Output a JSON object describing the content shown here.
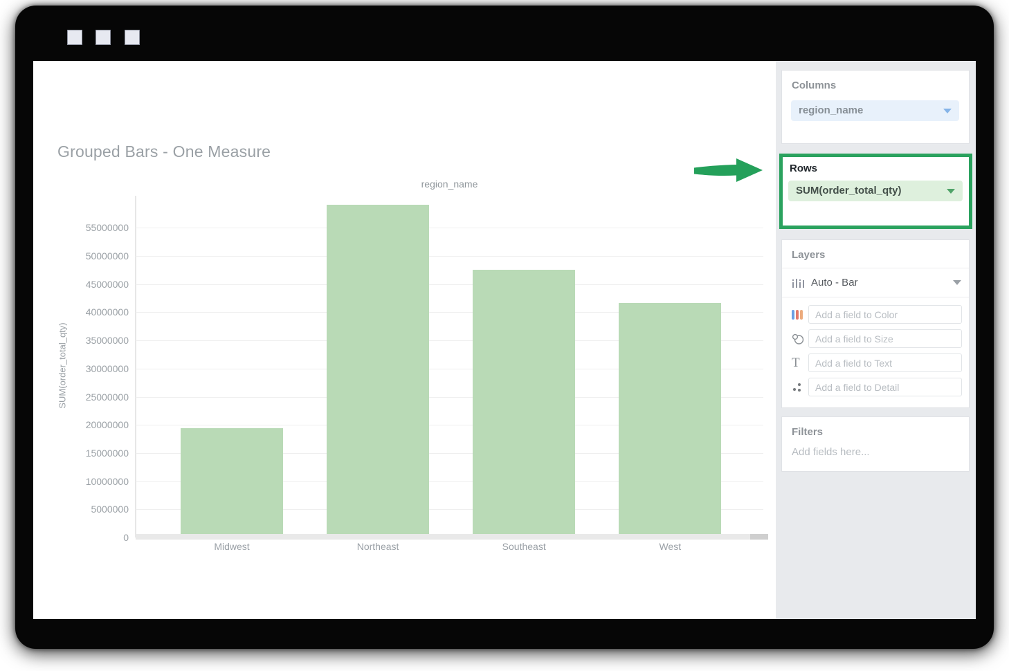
{
  "titlebar": {
    "window_buttons": [
      "square-button",
      "square-button",
      "square-button"
    ]
  },
  "chart_data": {
    "type": "bar",
    "title": "Grouped Bars - One Measure",
    "group_label": "region_name",
    "xlabel": "",
    "ylabel": "SUM(order_total_qty)",
    "categories": [
      "Midwest",
      "Northeast",
      "Southeast",
      "West"
    ],
    "values": [
      19400000,
      59100000,
      47500000,
      41700000
    ],
    "yticks": [
      0,
      5000000,
      10000000,
      15000000,
      20000000,
      25000000,
      30000000,
      35000000,
      40000000,
      45000000,
      50000000,
      55000000
    ],
    "ylim": [
      0,
      59100000
    ],
    "grid": true,
    "legend": false,
    "bar_color": "#b9dab6"
  },
  "sidebar": {
    "columns_panel": {
      "header": "Columns",
      "pill": "region_name",
      "pill_caret": "chevron-down-icon"
    },
    "rows_panel": {
      "header": "Rows",
      "pill": "SUM(order_total_qty)",
      "pill_caret": "chevron-down-icon",
      "highlighted": true
    },
    "layers_panel": {
      "header": "Layers",
      "layer_selector": {
        "icon": "mini-bar-chart-icon",
        "label": "Auto - Bar",
        "caret": "chevron-down-icon"
      },
      "drop_zones": [
        {
          "icon": "color-bars-icon",
          "placeholder": "Add a field to Color"
        },
        {
          "icon": "size-circles-icon",
          "placeholder": "Add a field to Size"
        },
        {
          "icon": "text-icon",
          "placeholder": "Add a field to Text"
        },
        {
          "icon": "detail-dots-icon",
          "placeholder": "Add a field to Detail"
        }
      ]
    },
    "filters_panel": {
      "header": "Filters",
      "placeholder": "Add fields here..."
    }
  },
  "annotation": {
    "shape": "arrow-right-icon",
    "color": "#24a05a",
    "points_to": "rows_panel"
  },
  "colors": {
    "accent_green": "#2aa25e",
    "bar_green": "#b9dab6",
    "pill_blue_bg": "#e8f1fb",
    "pill_green_bg": "#def0dd",
    "sidebar_bg": "#e8eaed",
    "frame_black": "#060606"
  }
}
